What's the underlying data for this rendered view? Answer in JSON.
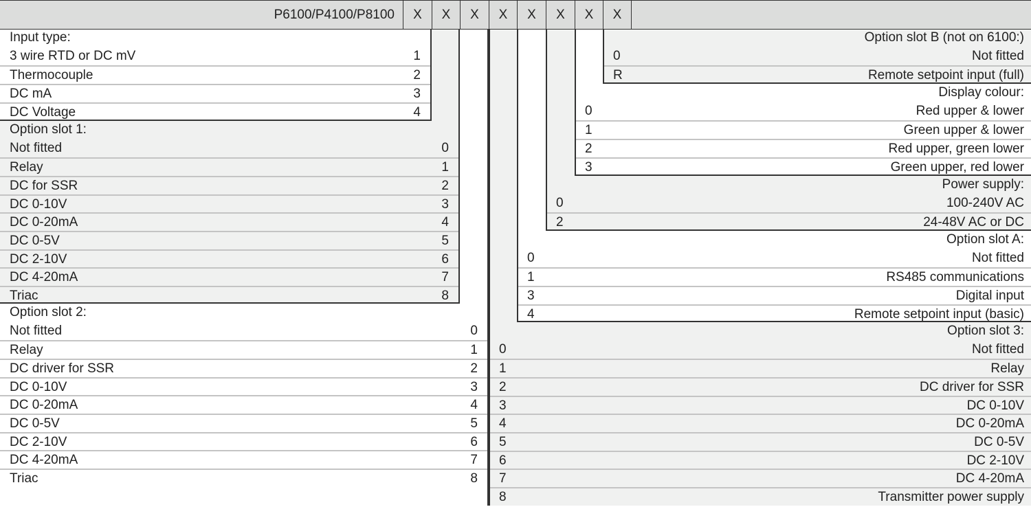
{
  "header": {
    "model": "P6100/P4100/P8100",
    "codes": [
      "X",
      "X",
      "X",
      "X",
      "X",
      "X",
      "X",
      "X"
    ]
  },
  "colors": {
    "header_bg": "#dcdddc",
    "shade_bg": "#f0f1f0",
    "white_bg": "#ffffff",
    "border": "#333333",
    "separator": "#c4c4c4"
  },
  "sections": [
    {
      "id": "option-slot-2",
      "side": "left",
      "title": "Option slot 2:",
      "items": [
        {
          "label": "Not fitted",
          "code": "0"
        },
        {
          "label": "Relay",
          "code": "1"
        },
        {
          "label": "DC driver for SSR",
          "code": "2"
        },
        {
          "label": "DC 0-10V",
          "code": "3"
        },
        {
          "label": "DC 0-20mA",
          "code": "4"
        },
        {
          "label": "DC 0-5V",
          "code": "5"
        },
        {
          "label": "DC 2-10V",
          "code": "6"
        },
        {
          "label": "DC 4-20mA",
          "code": "7"
        },
        {
          "label": "Triac",
          "code": "8"
        }
      ]
    },
    {
      "id": "option-slot-1",
      "side": "left",
      "title": "Option slot 1:",
      "items": [
        {
          "label": "Not fitted",
          "code": "0"
        },
        {
          "label": "Relay",
          "code": "1"
        },
        {
          "label": "DC for SSR",
          "code": "2"
        },
        {
          "label": "DC 0-10V",
          "code": "3"
        },
        {
          "label": "DC 0-20mA",
          "code": "4"
        },
        {
          "label": "DC 0-5V",
          "code": "5"
        },
        {
          "label": "DC 2-10V",
          "code": "6"
        },
        {
          "label": "DC 4-20mA",
          "code": "7"
        },
        {
          "label": "Triac",
          "code": "8"
        }
      ]
    },
    {
      "id": "input-type",
      "side": "left",
      "title": "Input type:",
      "items": [
        {
          "label": "3 wire RTD or DC mV",
          "code": "1"
        },
        {
          "label": "Thermocouple",
          "code": "2"
        },
        {
          "label": "DC mA",
          "code": "3"
        },
        {
          "label": "DC Voltage",
          "code": "4"
        }
      ]
    },
    {
      "id": "option-slot-3",
      "side": "right",
      "title": "Option slot 3:",
      "items": [
        {
          "label": "Not fitted",
          "code": "0"
        },
        {
          "label": "Relay",
          "code": "1"
        },
        {
          "label": "DC driver for SSR",
          "code": "2"
        },
        {
          "label": "DC 0-10V",
          "code": "3"
        },
        {
          "label": "DC 0-20mA",
          "code": "4"
        },
        {
          "label": "DC 0-5V",
          "code": "5"
        },
        {
          "label": "DC 2-10V",
          "code": "6"
        },
        {
          "label": "DC 4-20mA",
          "code": "7"
        },
        {
          "label": "Transmitter power supply",
          "code": "8"
        }
      ]
    },
    {
      "id": "option-slot-a",
      "side": "right",
      "title": "Option slot A:",
      "items": [
        {
          "label": "Not fitted",
          "code": "0"
        },
        {
          "label": "RS485 communications",
          "code": "1"
        },
        {
          "label": "Digital input",
          "code": "3"
        },
        {
          "label": "Remote setpoint input (basic)",
          "code": "4"
        }
      ]
    },
    {
      "id": "power-supply",
      "side": "right",
      "title": "Power supply:",
      "items": [
        {
          "label": "100-240V AC",
          "code": "0"
        },
        {
          "label": "24-48V AC or DC",
          "code": "2"
        }
      ]
    },
    {
      "id": "display-colour",
      "side": "right",
      "title": "Display colour:",
      "items": [
        {
          "label": "Red upper & lower",
          "code": "0"
        },
        {
          "label": "Green upper & lower",
          "code": "1"
        },
        {
          "label": "Red upper, green lower",
          "code": "2"
        },
        {
          "label": "Green upper, red lower",
          "code": "3"
        }
      ]
    },
    {
      "id": "option-slot-b",
      "side": "right",
      "title": "Option slot B (not on 6100:)",
      "items": [
        {
          "label": "Not fitted",
          "code": "0"
        },
        {
          "label": "Remote setpoint input (full)",
          "code": "R"
        }
      ]
    }
  ]
}
